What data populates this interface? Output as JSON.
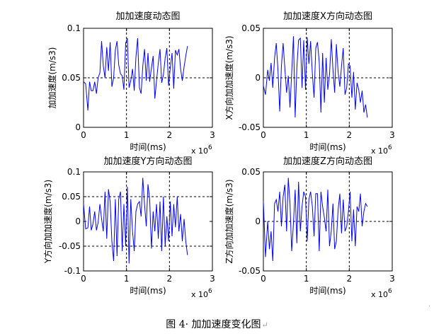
{
  "caption": "图 4· 加加速度变化图",
  "caption_return_mark": "↵",
  "edge_mark": "·",
  "chart_data": [
    {
      "type": "line",
      "title": "加加速度动态图",
      "xlabel": "时间(ms)",
      "ylabel": "加加速度(m/s3)",
      "x_exponent": "x 10",
      "x_exponent_power": "6",
      "xlim": [
        0,
        3
      ],
      "ylim": [
        0,
        0.1
      ],
      "xticks": [
        "0",
        "1",
        "2",
        "3"
      ],
      "yticks": [
        "0",
        "0.05",
        "0.1"
      ],
      "ytick_values": [
        0,
        0.05,
        0.1
      ],
      "ref_x": [
        1,
        2
      ],
      "ref_y": [
        0.05
      ],
      "x": [
        0,
        0.05,
        0.1,
        0.14,
        0.18,
        0.22,
        0.26,
        0.3,
        0.34,
        0.38,
        0.42,
        0.46,
        0.5,
        0.54,
        0.58,
        0.62,
        0.66,
        0.7,
        0.74,
        0.78,
        0.82,
        0.86,
        0.9,
        0.94,
        0.98,
        1.02,
        1.06,
        1.1,
        1.14,
        1.18,
        1.22,
        1.26,
        1.3,
        1.34,
        1.38,
        1.42,
        1.46,
        1.5,
        1.54,
        1.58,
        1.62,
        1.66,
        1.7,
        1.74,
        1.78,
        1.82,
        1.86,
        1.9,
        1.94,
        1.98,
        2.02,
        2.06,
        2.1,
        2.14,
        2.18,
        2.22,
        2.26,
        2.3,
        2.34,
        2.38,
        2.42
      ],
      "values": [
        0.046,
        0.044,
        0.017,
        0.046,
        0.037,
        0.037,
        0.046,
        0.034,
        0.05,
        0.055,
        0.087,
        0.062,
        0.05,
        0.081,
        0.057,
        0.086,
        0.041,
        0.05,
        0.078,
        0.087,
        0.063,
        0.054,
        0.052,
        0.038,
        0.085,
        0.09,
        0.04,
        0.047,
        0.059,
        0.037,
        0.071,
        0.09,
        0.04,
        0.034,
        0.062,
        0.079,
        0.047,
        0.075,
        0.046,
        0.06,
        0.072,
        0.029,
        0.047,
        0.065,
        0.079,
        0.045,
        0.053,
        0.07,
        0.08,
        0.042,
        0.06,
        0.075,
        0.039,
        0.078,
        0.073,
        0.079,
        0.059,
        0.047,
        0.061,
        0.072,
        0.082
      ]
    },
    {
      "type": "line",
      "title": "加加速度X方向动态图",
      "xlabel": "时间(ms)",
      "ylabel": "X方向加加速度(m/s3)",
      "x_exponent": "x 10",
      "x_exponent_power": "6",
      "xlim": [
        0,
        3
      ],
      "ylim": [
        -0.05,
        0.05
      ],
      "xticks": [
        "0",
        "1",
        "2",
        "3"
      ],
      "yticks": [
        "-0.05",
        "0",
        "0.05"
      ],
      "ytick_values": [
        -0.05,
        0,
        0.05
      ],
      "ref_x": [
        1,
        2
      ],
      "ref_y": [
        0
      ],
      "x": [
        0,
        0.05,
        0.1,
        0.14,
        0.18,
        0.22,
        0.26,
        0.3,
        0.34,
        0.38,
        0.42,
        0.46,
        0.5,
        0.54,
        0.58,
        0.62,
        0.66,
        0.7,
        0.74,
        0.78,
        0.82,
        0.86,
        0.9,
        0.94,
        0.98,
        1.02,
        1.06,
        1.1,
        1.14,
        1.18,
        1.22,
        1.26,
        1.3,
        1.34,
        1.38,
        1.42,
        1.46,
        1.5,
        1.54,
        1.58,
        1.62,
        1.66,
        1.7,
        1.74,
        1.78,
        1.82,
        1.86,
        1.9,
        1.94,
        1.98,
        2.02,
        2.06,
        2.1,
        2.14,
        2.18,
        2.22,
        2.26,
        2.3,
        2.34,
        2.38,
        2.42
      ],
      "values": [
        -0.008,
        -0.017,
        0.008,
        -0.003,
        0.015,
        -0.01,
        0.02,
        0.035,
        0.008,
        -0.034,
        0.012,
        0.035,
        0.01,
        -0.015,
        0.002,
        -0.03,
        0.005,
        0.042,
        -0.04,
        0.01,
        0.038,
        0.04,
        -0.01,
        0.038,
        -0.012,
        0.041,
        0.014,
        0.037,
        0.004,
        -0.02,
        0.03,
        0.036,
        0.016,
        -0.035,
        0.025,
        -0.025,
        0.02,
        -0.012,
        0.003,
        0.039,
        0.008,
        -0.015,
        0.034,
        0.006,
        -0.009,
        0.012,
        0.03,
        -0.017,
        -0.01,
        0.014,
        0.012,
        -0.02,
        0.006,
        -0.032,
        -0.005,
        -0.012,
        -0.025,
        -0.013,
        -0.035,
        -0.027,
        -0.04
      ]
    },
    {
      "type": "line",
      "title": "加加速度Y方向动态图",
      "xlabel": "时间(ms)",
      "ylabel": "Y方向加加速度(m/s3)",
      "x_exponent": "x 10",
      "x_exponent_power": "6",
      "xlim": [
        0,
        3
      ],
      "ylim": [
        -0.1,
        0.1
      ],
      "xticks": [
        "0",
        "1",
        "2",
        "3"
      ],
      "yticks": [
        "-0.1",
        "-0.05",
        "0",
        "0.05",
        "0.1"
      ],
      "ytick_values": [
        -0.1,
        -0.05,
        0,
        0.05,
        0.1
      ],
      "ref_x": [
        1,
        2
      ],
      "ref_y": [
        -0.05,
        0.05
      ],
      "x": [
        0,
        0.05,
        0.1,
        0.14,
        0.18,
        0.22,
        0.26,
        0.3,
        0.34,
        0.38,
        0.42,
        0.46,
        0.5,
        0.54,
        0.58,
        0.62,
        0.66,
        0.7,
        0.74,
        0.78,
        0.82,
        0.86,
        0.9,
        0.94,
        0.98,
        1.02,
        1.06,
        1.1,
        1.14,
        1.18,
        1.22,
        1.26,
        1.3,
        1.34,
        1.38,
        1.42,
        1.46,
        1.5,
        1.54,
        1.58,
        1.62,
        1.66,
        1.7,
        1.74,
        1.78,
        1.82,
        1.86,
        1.9,
        1.94,
        1.98,
        2.02,
        2.06,
        2.1,
        2.14,
        2.18,
        2.22,
        2.26,
        2.3,
        2.34,
        2.38,
        2.42
      ],
      "values": [
        0.035,
        -0.015,
        -0.013,
        0.03,
        -0.018,
        -0.005,
        0.02,
        -0.018,
        -0.002,
        0.035,
        0.005,
        -0.02,
        0.06,
        -0.035,
        0.065,
        0.04,
        -0.04,
        -0.08,
        0.045,
        -0.07,
        0.045,
        0.06,
        -0.06,
        0.035,
        -0.05,
        0.07,
        -0.085,
        0.045,
        -0.02,
        -0.06,
        0.02,
        0.035,
        0.04,
        0.01,
        0.088,
        0.035,
        -0.01,
        0.075,
        0.045,
        -0.055,
        0.02,
        -0.02,
        0.035,
        -0.035,
        0.04,
        -0.06,
        0.05,
        -0.05,
        0.01,
        -0.04,
        0.04,
        -0.03,
        0.035,
        -0.012,
        0.05,
        -0.02,
        0.015,
        -0.04,
        0.005,
        -0.04,
        -0.068
      ]
    },
    {
      "type": "line",
      "title": "加加速度Z方向动态图",
      "xlabel": "时间(ms)",
      "ylabel": "Z方向加加速度(m/s3)",
      "x_exponent": "x 10",
      "x_exponent_power": "6",
      "xlim": [
        0,
        3
      ],
      "ylim": [
        -0.05,
        0.05
      ],
      "xticks": [
        "0",
        "1",
        "2",
        "3"
      ],
      "yticks": [
        "-0.05",
        "0",
        "0.05"
      ],
      "ytick_values": [
        -0.05,
        0,
        0.05
      ],
      "ref_x": [
        1,
        2
      ],
      "ref_y": [
        0
      ],
      "x": [
        0,
        0.05,
        0.1,
        0.14,
        0.18,
        0.22,
        0.26,
        0.3,
        0.34,
        0.38,
        0.42,
        0.46,
        0.5,
        0.54,
        0.58,
        0.62,
        0.66,
        0.7,
        0.74,
        0.78,
        0.82,
        0.86,
        0.9,
        0.94,
        0.98,
        1.02,
        1.06,
        1.1,
        1.14,
        1.18,
        1.22,
        1.26,
        1.3,
        1.34,
        1.38,
        1.42,
        1.46,
        1.5,
        1.54,
        1.58,
        1.62,
        1.66,
        1.7,
        1.74,
        1.78,
        1.82,
        1.86,
        1.9,
        1.94,
        1.98,
        2.02,
        2.06,
        2.1,
        2.14,
        2.18,
        2.22,
        2.26,
        2.3,
        2.34,
        2.38,
        2.42
      ],
      "values": [
        0.02,
        -0.036,
        0.0,
        -0.028,
        -0.01,
        -0.04,
        0.018,
        0.022,
        0.01,
        0.03,
        -0.005,
        0.025,
        0.037,
        -0.01,
        0.044,
        0.018,
        -0.03,
        -0.002,
        0.032,
        -0.022,
        0.04,
        -0.01,
        0.015,
        0.03,
        0.025,
        -0.02,
        0.022,
        0.03,
        0.015,
        -0.015,
        0.028,
        0.028,
        -0.03,
        0.03,
        0.015,
        0.004,
        -0.01,
        0.032,
        -0.025,
        -0.01,
        0.018,
        -0.028,
        -0.02,
        0.012,
        0.028,
        -0.012,
        0.022,
        -0.01,
        -0.005,
        0.01,
        0.03,
        -0.02,
        0.012,
        -0.025,
        0.015,
        0.01,
        0.028,
        -0.005,
        0.01,
        0.018,
        0.015
      ]
    }
  ]
}
